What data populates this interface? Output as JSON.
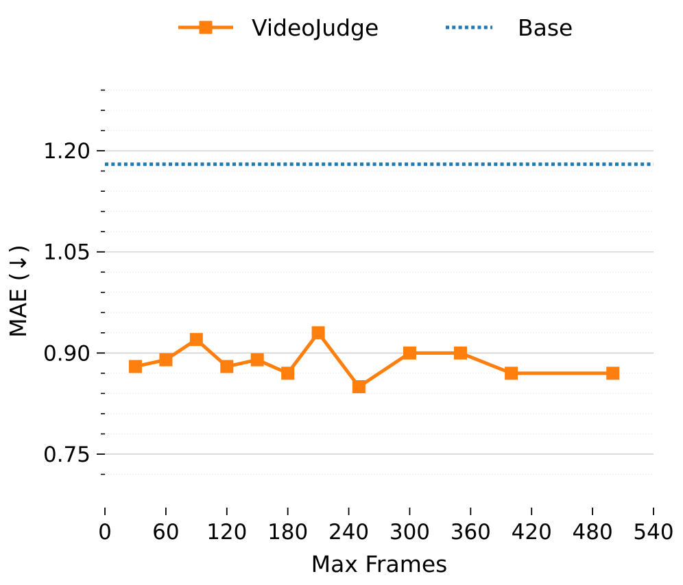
{
  "chart_data": {
    "type": "line",
    "xlabel": "Max Frames",
    "ylabel": "MAE (↓)",
    "xlim": [
      0,
      540
    ],
    "ylim": [
      0.69,
      1.32
    ],
    "xticks": [
      0,
      60,
      120,
      180,
      240,
      300,
      360,
      420,
      480,
      540
    ],
    "xtick_labels": [
      "0",
      "60",
      "120",
      "180",
      "240",
      "300",
      "360",
      "420",
      "480",
      "540"
    ],
    "yticks": [
      0.75,
      0.9,
      1.05,
      1.2
    ],
    "ytick_labels": [
      "0.75",
      "0.90",
      "1.05",
      "1.20"
    ],
    "yminor_ticks": [
      0.72,
      0.78,
      0.81,
      0.84,
      0.87,
      0.93,
      0.96,
      0.99,
      1.02,
      1.08,
      1.11,
      1.14,
      1.17,
      1.23,
      1.26,
      1.29
    ],
    "grid": "horizontal",
    "legend_position": "top-center",
    "series": [
      {
        "name": "VideoJudge",
        "style": "solid-square-markers",
        "color": "#ff7f0e",
        "x": [
          30,
          60,
          90,
          120,
          150,
          180,
          210,
          250,
          300,
          350,
          400,
          500
        ],
        "y": [
          0.88,
          0.89,
          0.92,
          0.88,
          0.89,
          0.87,
          0.93,
          0.85,
          0.9,
          0.9,
          0.87,
          0.87
        ]
      },
      {
        "name": "Base",
        "style": "dotted-horizontal",
        "color": "#1f77b4",
        "value": 1.18
      }
    ]
  }
}
